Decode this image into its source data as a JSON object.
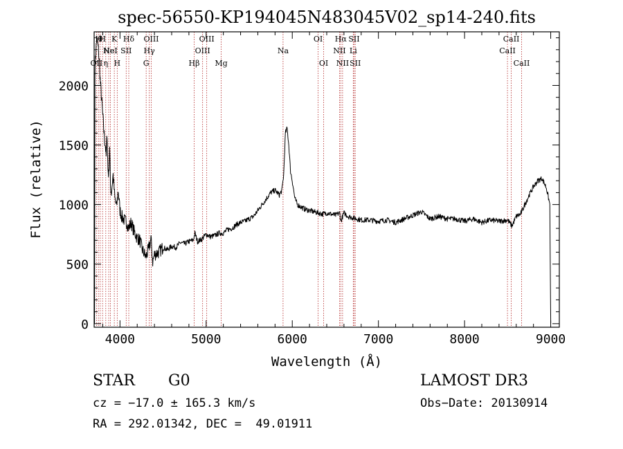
{
  "chart_data": {
    "type": "line",
    "title": "spec-56550-KP194045N483045V02_sp14-240.fits",
    "xlabel": "Wavelength (Å)",
    "ylabel": "Flux (relative)",
    "xlim": [
      3700,
      9100
    ],
    "ylim": [
      -30,
      2450
    ],
    "x_ticks": [
      4000,
      5000,
      6000,
      7000,
      8000,
      9000
    ],
    "y_ticks": [
      0,
      500,
      1000,
      1500,
      2000
    ],
    "grid": false,
    "series": [
      {
        "points": [
          [
            3700,
            0
          ],
          [
            3705,
            0
          ],
          [
            3710,
            2150
          ],
          [
            3720,
            2300
          ],
          [
            3730,
            2380
          ],
          [
            3740,
            2350
          ],
          [
            3750,
            2300
          ],
          [
            3760,
            2200
          ],
          [
            3770,
            2050
          ],
          [
            3780,
            1950
          ],
          [
            3790,
            1850
          ],
          [
            3800,
            1750
          ],
          [
            3810,
            1650
          ],
          [
            3820,
            1550
          ],
          [
            3830,
            1500
          ],
          [
            3840,
            1400
          ],
          [
            3850,
            1600
          ],
          [
            3860,
            1300
          ],
          [
            3870,
            1250
          ],
          [
            3880,
            1500
          ],
          [
            3890,
            1150
          ],
          [
            3900,
            1100
          ],
          [
            3920,
            1250
          ],
          [
            3940,
            1050
          ],
          [
            3960,
            980
          ],
          [
            3980,
            1120
          ],
          [
            4000,
            950
          ],
          [
            4020,
            900
          ],
          [
            4050,
            870
          ],
          [
            4080,
            850
          ],
          [
            4100,
            800
          ],
          [
            4130,
            850
          ],
          [
            4160,
            780
          ],
          [
            4200,
            720
          ],
          [
            4230,
            700
          ],
          [
            4260,
            620
          ],
          [
            4300,
            560
          ],
          [
            4330,
            620
          ],
          [
            4360,
            710
          ],
          [
            4380,
            520
          ],
          [
            4400,
            580
          ],
          [
            4450,
            600
          ],
          [
            4500,
            640
          ],
          [
            4550,
            620
          ],
          [
            4600,
            650
          ],
          [
            4650,
            640
          ],
          [
            4700,
            680
          ],
          [
            4750,
            670
          ],
          [
            4800,
            690
          ],
          [
            4850,
            700
          ],
          [
            4870,
            760
          ],
          [
            4900,
            690
          ],
          [
            4950,
            710
          ],
          [
            5000,
            750
          ],
          [
            5050,
            730
          ],
          [
            5100,
            740
          ],
          [
            5150,
            760
          ],
          [
            5200,
            760
          ],
          [
            5250,
            790
          ],
          [
            5300,
            800
          ],
          [
            5350,
            830
          ],
          [
            5400,
            850
          ],
          [
            5450,
            860
          ],
          [
            5500,
            880
          ],
          [
            5550,
            900
          ],
          [
            5600,
            950
          ],
          [
            5650,
            1000
          ],
          [
            5700,
            1050
          ],
          [
            5750,
            1100
          ],
          [
            5800,
            1120
          ],
          [
            5850,
            1080
          ],
          [
            5880,
            1120
          ],
          [
            5900,
            1250
          ],
          [
            5920,
            1600
          ],
          [
            5940,
            1640
          ],
          [
            5960,
            1500
          ],
          [
            5980,
            1280
          ],
          [
            6000,
            1200
          ],
          [
            6030,
            1050
          ],
          [
            6060,
            1000
          ],
          [
            6100,
            980
          ],
          [
            6150,
            960
          ],
          [
            6200,
            950
          ],
          [
            6250,
            940
          ],
          [
            6300,
            930
          ],
          [
            6350,
            920
          ],
          [
            6400,
            930
          ],
          [
            6450,
            920
          ],
          [
            6500,
            910
          ],
          [
            6550,
            930
          ],
          [
            6564,
            860
          ],
          [
            6600,
            930
          ],
          [
            6650,
            900
          ],
          [
            6700,
            890
          ],
          [
            6750,
            880
          ],
          [
            6800,
            870
          ],
          [
            6900,
            870
          ],
          [
            7000,
            860
          ],
          [
            7100,
            870
          ],
          [
            7200,
            850
          ],
          [
            7300,
            880
          ],
          [
            7400,
            910
          ],
          [
            7500,
            940
          ],
          [
            7600,
            880
          ],
          [
            7700,
            900
          ],
          [
            7800,
            880
          ],
          [
            7900,
            880
          ],
          [
            8000,
            860
          ],
          [
            8100,
            880
          ],
          [
            8200,
            850
          ],
          [
            8300,
            870
          ],
          [
            8400,
            860
          ],
          [
            8500,
            870
          ],
          [
            8550,
            820
          ],
          [
            8600,
            900
          ],
          [
            8650,
            920
          ],
          [
            8700,
            1000
          ],
          [
            8750,
            1080
          ],
          [
            8800,
            1150
          ],
          [
            8850,
            1200
          ],
          [
            8900,
            1220
          ],
          [
            8950,
            1140
          ],
          [
            8990,
            1000
          ],
          [
            9000,
            0
          ]
        ]
      }
    ],
    "lines": [
      {
        "x": 3727,
        "labels": [
          "OII"
        ],
        "row": 2
      },
      {
        "x": 3750,
        "labels": [
          "H"
        ],
        "row": 0
      },
      {
        "x": 3771,
        "labels": [
          "θ"
        ],
        "row": 0
      },
      {
        "x": 3798,
        "labels": [
          "H"
        ],
        "row": 0
      },
      {
        "x": 3835,
        "labels": [
          "η"
        ],
        "row": 2
      },
      {
        "x": 3869,
        "labels": [
          "Ne"
        ],
        "row": 1
      },
      {
        "x": 3889,
        "labels": [
          "HeI"
        ],
        "row": 1
      },
      {
        "x": 3934,
        "labels": [
          "K"
        ],
        "row": 0
      },
      {
        "x": 3968,
        "labels": [
          "H"
        ],
        "row": 2
      },
      {
        "x": 4072,
        "labels": [
          "SII"
        ],
        "row": 1
      },
      {
        "x": 4102,
        "labels": [
          "Hδ"
        ],
        "row": 0
      },
      {
        "x": 4304,
        "labels": [
          "G"
        ],
        "row": 2
      },
      {
        "x": 4340,
        "labels": [
          "Hγ"
        ],
        "row": 1
      },
      {
        "x": 4363,
        "labels": [
          "OIII"
        ],
        "row": 0
      },
      {
        "x": 4861,
        "labels": [
          "Hβ"
        ],
        "row": 2
      },
      {
        "x": 4959,
        "labels": [
          "OIII"
        ],
        "row": 1
      },
      {
        "x": 5007,
        "labels": [
          "OIII"
        ],
        "row": 0
      },
      {
        "x": 5175,
        "labels": [
          "Mg"
        ],
        "row": 2
      },
      {
        "x": 5893,
        "labels": [
          "Na"
        ],
        "row": 1
      },
      {
        "x": 6300,
        "labels": [
          "OI"
        ],
        "row": 0
      },
      {
        "x": 6364,
        "labels": [
          "OI"
        ],
        "row": 2
      },
      {
        "x": 6548,
        "labels": [
          "NII"
        ],
        "row": 1
      },
      {
        "x": 6563,
        "labels": [
          "Hα"
        ],
        "row": 0
      },
      {
        "x": 6584,
        "labels": [
          "NII"
        ],
        "row": 2
      },
      {
        "x": 6708,
        "labels": [
          "Li"
        ],
        "row": 1
      },
      {
        "x": 6717,
        "labels": [
          "SII"
        ],
        "row": 0
      },
      {
        "x": 6731,
        "labels": [
          "SII"
        ],
        "row": 2
      },
      {
        "x": 8498,
        "labels": [
          "CaII"
        ],
        "row": 1
      },
      {
        "x": 8542,
        "labels": [
          "CaII"
        ],
        "row": 0
      },
      {
        "x": 8662,
        "labels": [
          "CaII"
        ],
        "row": 2
      }
    ],
    "colors": {
      "spectrum": "#000000",
      "lines": "#b22222",
      "axes": "#000000"
    }
  },
  "info": {
    "class": "STAR",
    "subclass": "G0",
    "survey": "LAMOST DR3",
    "cz": "cz = −17.0 ± 165.3 km/s",
    "obs_date": "Obs−Date: 20130914",
    "coords": "RA = 292.01342, DEC =  49.01911"
  }
}
